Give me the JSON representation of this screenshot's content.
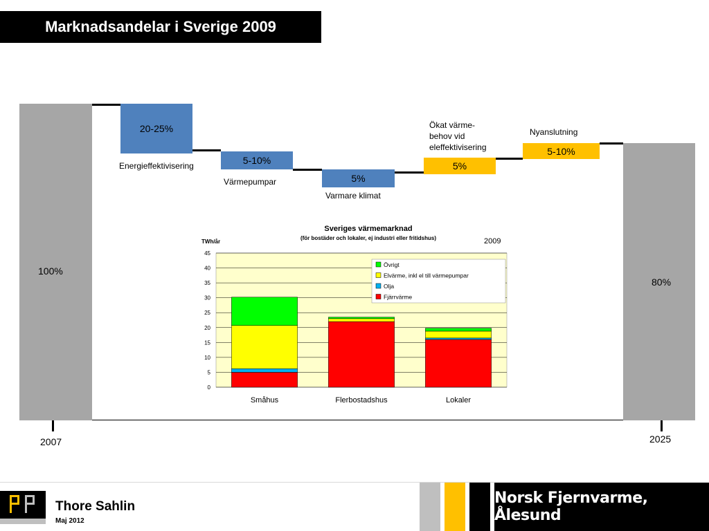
{
  "title": "Marknadsandelar i Sverige 2009",
  "waterfall": {
    "start": {
      "label": "100%",
      "year": "2007"
    },
    "end": {
      "label": "80%",
      "year": "2025"
    },
    "steps": [
      {
        "value": "20-25%",
        "label": "Energieffektivisering",
        "color": "#4f81bd"
      },
      {
        "value": "5-10%",
        "label": "Värmepumpar",
        "color": "#4f81bd"
      },
      {
        "value": "5%",
        "label": "Varmare klimat",
        "color": "#4f81bd"
      },
      {
        "value": "5%",
        "label": "Ökat värme-\nbehov vid\neleffektivisering",
        "color": "#ffc000"
      },
      {
        "value": "5-10%",
        "label": "Nyanslutning",
        "color": "#ffc000"
      }
    ]
  },
  "chart_data": {
    "type": "bar",
    "stacked": true,
    "title": "Sveriges värmemarknad",
    "subtitle": "(för bostäder och lokaler, ej industri eller fritidshus)",
    "year_label": "2009",
    "ylabel": "TWh/år",
    "ylim": [
      0,
      45
    ],
    "yticks": [
      0,
      5,
      10,
      15,
      20,
      25,
      30,
      35,
      40,
      45
    ],
    "grid": true,
    "legend_position": "top-right",
    "categories": [
      "Småhus",
      "Flerbostadshus",
      "Lokaler"
    ],
    "series": [
      {
        "name": "Fjärrvärme",
        "color": "#ff0000",
        "values": [
          5.0,
          22.0,
          16.0
        ]
      },
      {
        "name": "Olja",
        "color": "#00b0f0",
        "values": [
          1.2,
          0.0,
          0.5
        ]
      },
      {
        "name": "Elvärme, inkl el till värmepumpar",
        "color": "#ffff00",
        "values": [
          14.5,
          1.0,
          2.3
        ]
      },
      {
        "name": "Övrigt",
        "color": "#00ff00",
        "values": [
          9.5,
          0.5,
          1.0
        ]
      }
    ],
    "legend_order": [
      "Övrigt",
      "Elvärme, inkl el till värmepumpar",
      "Olja",
      "Fjärrvärme"
    ],
    "background": "#ffffcc"
  },
  "footer": {
    "logo_text": "PP",
    "name": "Thore Sahlin",
    "date": "Maj  2012",
    "organization": "Norsk Fjernvarme, Ålesund"
  }
}
